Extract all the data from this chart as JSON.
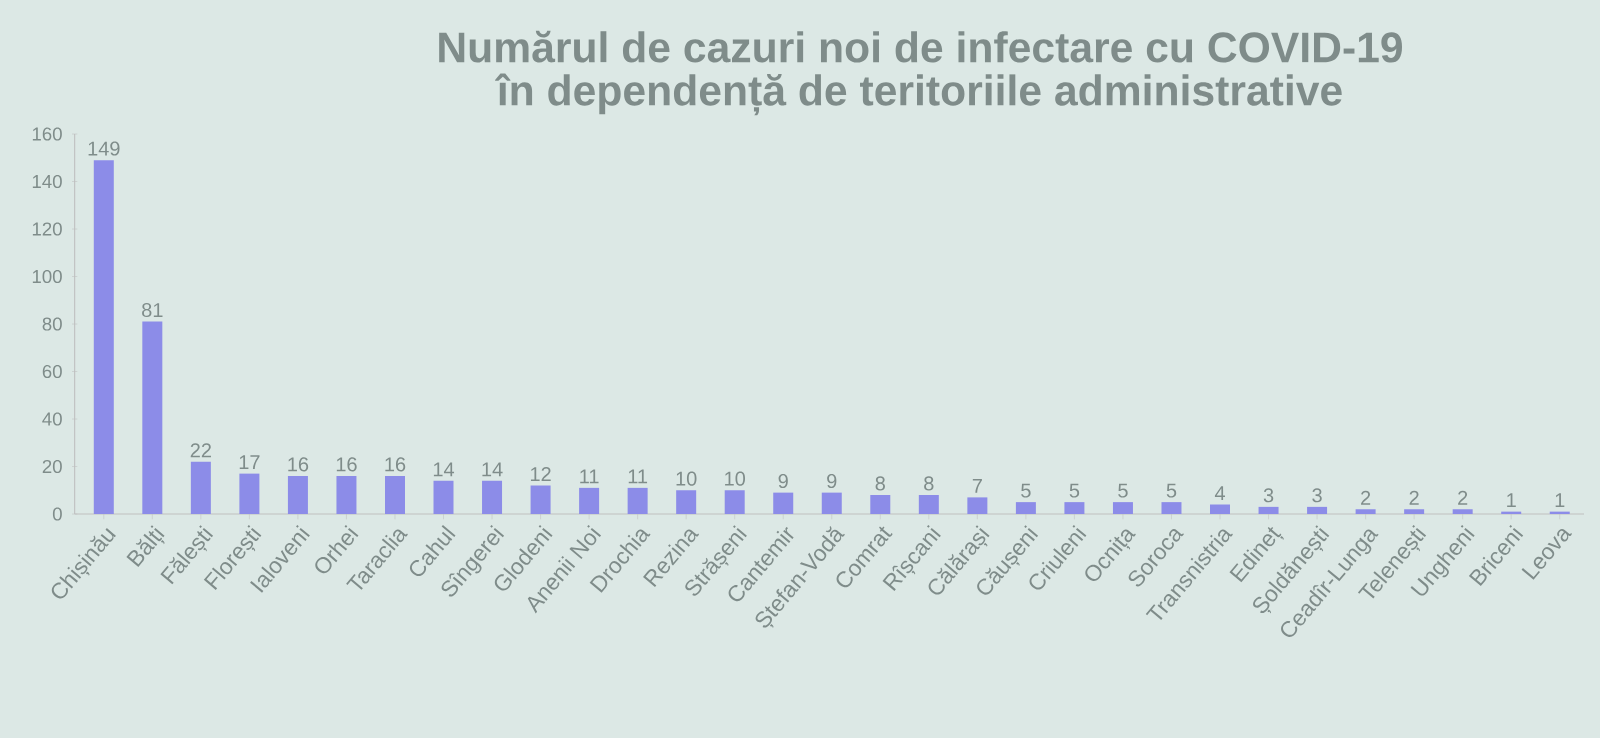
{
  "chart_data": {
    "type": "bar",
    "title": "Numărul de cazuri noi de infectare cu COVID-19",
    "subtitle": "în dependență de teritoriile administrative",
    "categories": [
      "Chișinău",
      "Bălți",
      "Fălești",
      "Florești",
      "Ialoveni",
      "Orhei",
      "Taraclia",
      "Cahul",
      "Sîngerei",
      "Glodeni",
      "Anenii Noi",
      "Drochia",
      "Rezina",
      "Strășeni",
      "Cantemir",
      "Ștefan-Vodă",
      "Comrat",
      "Rîșcani",
      "Călărași",
      "Căușeni",
      "Criuleni",
      "Ocnița",
      "Soroca",
      "Transnistria",
      "Edineț",
      "Șoldănești",
      "Ceadîr-Lunga",
      "Telenești",
      "Ungheni",
      "Briceni",
      "Leova"
    ],
    "values": [
      149,
      81,
      22,
      17,
      16,
      16,
      16,
      14,
      14,
      12,
      11,
      11,
      10,
      10,
      9,
      9,
      8,
      8,
      7,
      5,
      5,
      5,
      5,
      4,
      3,
      3,
      2,
      2,
      2,
      1,
      1
    ],
    "color": "#8c8ce8",
    "data_labels": true,
    "ylim": [
      0,
      160
    ],
    "yticks": [
      0,
      20,
      40,
      60,
      80,
      100,
      120,
      140,
      160
    ]
  }
}
